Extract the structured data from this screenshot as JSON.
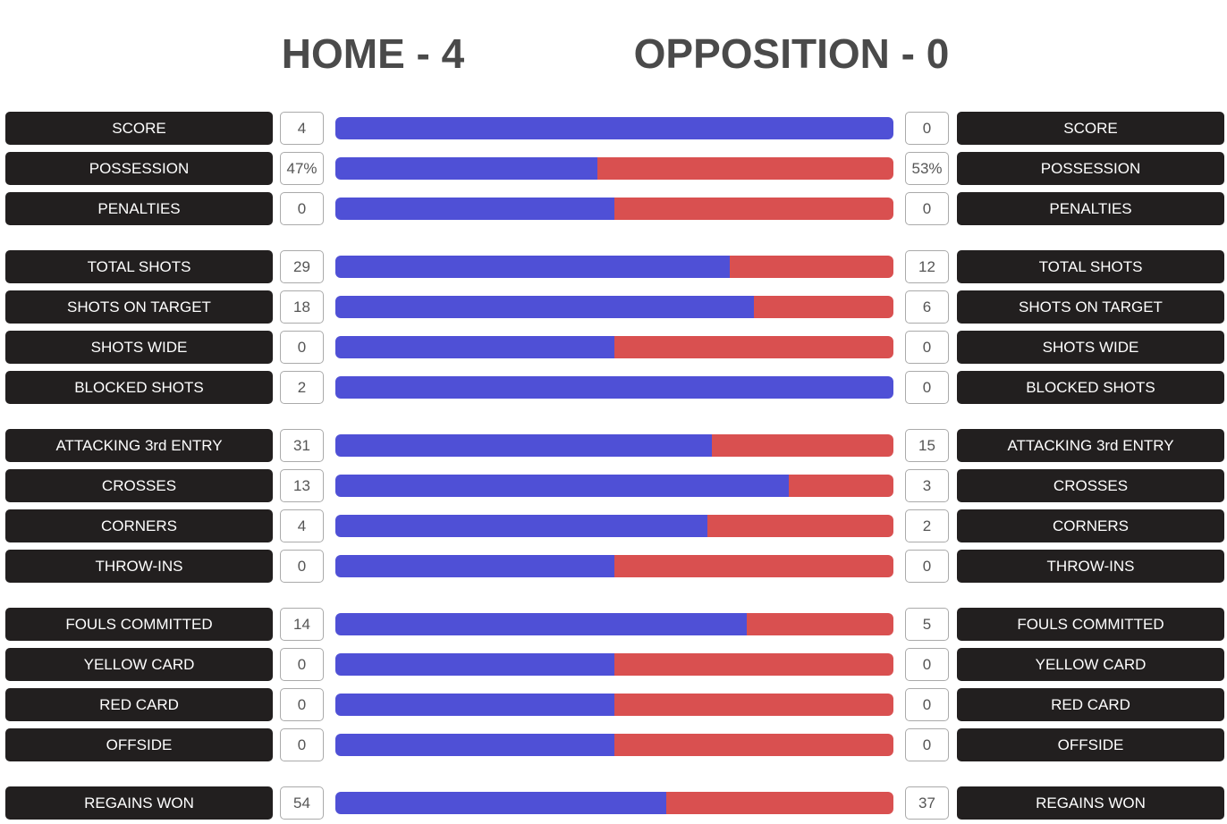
{
  "header": {
    "home": "HOME - 4",
    "opposition": "OPPOSITION - 0"
  },
  "colors": {
    "home": "#4f50d6",
    "opposition": "#d95050"
  },
  "groups": [
    {
      "rows": [
        {
          "label": "SCORE",
          "home": 4,
          "away": 0
        },
        {
          "label": "POSSESSION",
          "home": 47,
          "away": 53,
          "home_label": "47%",
          "away_label": "53%"
        },
        {
          "label": "PENALTIES",
          "home": 0,
          "away": 0
        }
      ]
    },
    {
      "rows": [
        {
          "label": "TOTAL SHOTS",
          "home": 29,
          "away": 12
        },
        {
          "label": "SHOTS ON TARGET",
          "home": 18,
          "away": 6
        },
        {
          "label": "SHOTS WIDE",
          "home": 0,
          "away": 0
        },
        {
          "label": "BLOCKED SHOTS",
          "home": 2,
          "away": 0
        }
      ]
    },
    {
      "rows": [
        {
          "label": "ATTACKING 3rd ENTRY",
          "home": 31,
          "away": 15
        },
        {
          "label": "CROSSES",
          "home": 13,
          "away": 3
        },
        {
          "label": "CORNERS",
          "home": 4,
          "away": 2
        },
        {
          "label": "THROW-INS",
          "home": 0,
          "away": 0
        }
      ]
    },
    {
      "rows": [
        {
          "label": "FOULS COMMITTED",
          "home": 14,
          "away": 5
        },
        {
          "label": "YELLOW CARD",
          "home": 0,
          "away": 0
        },
        {
          "label": "RED CARD",
          "home": 0,
          "away": 0
        },
        {
          "label": "OFFSIDE",
          "home": 0,
          "away": 0
        }
      ]
    },
    {
      "rows": [
        {
          "label": "REGAINS WON",
          "home": 54,
          "away": 37
        }
      ]
    }
  ]
}
